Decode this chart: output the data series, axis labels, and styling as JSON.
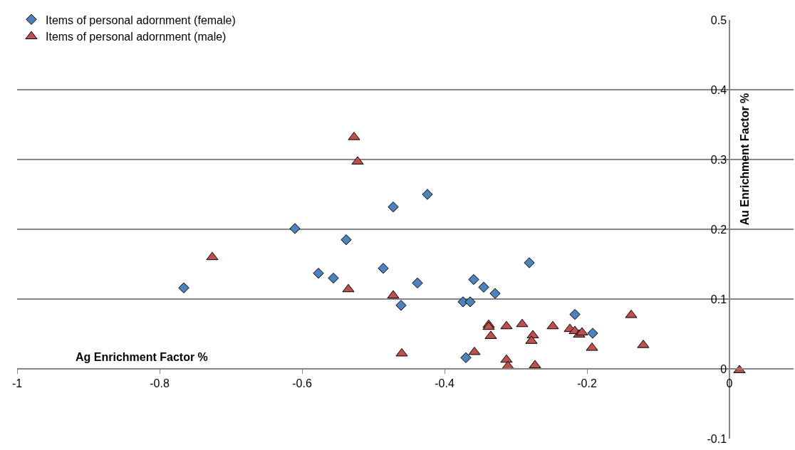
{
  "chart_data": {
    "type": "scatter",
    "xlabel": "Ag Enrichment Factor %",
    "ylabel": "Au Enrichment Factor %",
    "xlim": [
      -1,
      0.09
    ],
    "xticks": [
      -1,
      -0.8,
      -0.6,
      -0.4,
      -0.2,
      0
    ],
    "ylim": [
      -0.1,
      0.5
    ],
    "yticks": [
      -0.1,
      0,
      0.1,
      0.2,
      0.3,
      0.4,
      0.5
    ],
    "grid": "y",
    "legend": "top left",
    "series": [
      {
        "name": "Items of personal adornment (female)",
        "color": "#4f81bd",
        "marker": "diamond",
        "x": [
          -0.766,
          -0.61,
          -0.577,
          -0.556,
          -0.538,
          -0.486,
          -0.472,
          -0.461,
          -0.438,
          -0.424,
          -0.374,
          -0.364,
          -0.359,
          -0.345,
          -0.329,
          -0.37,
          -0.217,
          -0.192,
          -0.281
        ],
        "values": [
          0.116,
          0.201,
          0.137,
          0.13,
          0.185,
          0.144,
          0.232,
          0.091,
          0.123,
          0.25,
          0.096,
          0.096,
          0.128,
          0.117,
          0.108,
          0.016,
          0.078,
          0.051,
          0.152
        ]
      },
      {
        "name": "Items of personal adornment (male)",
        "color": "#c0504d",
        "marker": "triangle",
        "x": [
          -0.726,
          -0.527,
          -0.522,
          -0.535,
          -0.472,
          -0.46,
          -0.338,
          -0.338,
          -0.335,
          -0.358,
          -0.313,
          -0.313,
          -0.311,
          -0.291,
          -0.276,
          -0.278,
          -0.273,
          -0.248,
          -0.224,
          -0.217,
          -0.211,
          -0.207,
          -0.193,
          -0.138,
          -0.121,
          0.014
        ],
        "values": [
          0.16,
          0.332,
          0.297,
          0.114,
          0.105,
          0.022,
          0.063,
          0.06,
          0.047,
          0.024,
          0.061,
          0.013,
          0.004,
          0.064,
          0.048,
          0.04,
          0.005,
          0.061,
          0.057,
          0.054,
          0.049,
          0.052,
          0.03,
          0.077,
          0.034,
          -0.002
        ]
      }
    ]
  }
}
